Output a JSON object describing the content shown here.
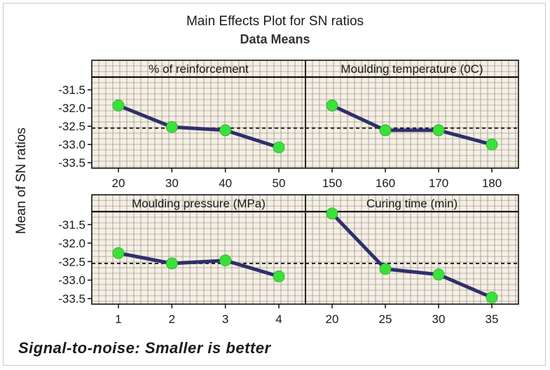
{
  "title": "Main Effects Plot for SN ratios",
  "subtitle": "Data Means",
  "ylabel": "Mean of SN ratios",
  "footer": "Signal-to-noise: Smaller is better",
  "colors": {
    "line": "#2f2f6b",
    "marker": "#39e239",
    "panel_bg": "#f6efe3",
    "grid": "#7a7a7a",
    "reference": "#1a1a1a"
  },
  "chart_data": {
    "type": "line",
    "title": "Main Effects Plot for SN ratios",
    "subtitle": "Data Means",
    "ylabel": "Mean of SN ratios",
    "ylim": [
      -33.65,
      -31.15
    ],
    "yticks": [
      "-31.5",
      "-32.0",
      "-32.5",
      "-33.0",
      "-33.5"
    ],
    "ytick_values": [
      -31.5,
      -32.0,
      -32.5,
      -33.0,
      -33.5
    ],
    "grand_mean": -32.55,
    "grid": true,
    "panels": [
      {
        "name": "% of reinforcement",
        "categories": [
          "20",
          "30",
          "40",
          "50"
        ],
        "values": [
          -31.93,
          -32.52,
          -32.61,
          -33.08
        ]
      },
      {
        "name": "Moulding temperature (0C)",
        "categories": [
          "150",
          "160",
          "170",
          "180"
        ],
        "values": [
          -31.93,
          -32.61,
          -32.61,
          -33.0
        ]
      },
      {
        "name": "Moulding pressure (MPa)",
        "categories": [
          "1",
          "2",
          "3",
          "4"
        ],
        "values": [
          -32.27,
          -32.55,
          -32.47,
          -32.9
        ]
      },
      {
        "name": "Curing time (min)",
        "categories": [
          "20",
          "25",
          "30",
          "35"
        ],
        "values": [
          -31.2,
          -32.7,
          -32.85,
          -33.47
        ]
      }
    ]
  }
}
